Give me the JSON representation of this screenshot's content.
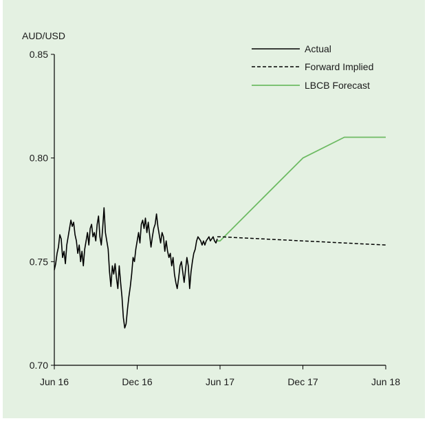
{
  "chart_data": {
    "type": "line",
    "ylabel": "AUD/USD",
    "title": "",
    "xlabel": "",
    "ylim": [
      0.7,
      0.85
    ],
    "yticks": [
      "0.85",
      "0.80",
      "0.75",
      "0.70"
    ],
    "ytick_values": [
      0.85,
      0.8,
      0.75,
      0.7
    ],
    "x_range": [
      "2016-06",
      "2018-06"
    ],
    "xticks": [
      {
        "label": "Jun 16",
        "month": 0
      },
      {
        "label": "Dec 16",
        "month": 6
      },
      {
        "label": "Jun 17",
        "month": 12
      },
      {
        "label": "Dec 17",
        "month": 18
      },
      {
        "label": "Jun 18",
        "month": 24
      }
    ],
    "legend_position": "top-right",
    "colors": {
      "actual": "#000000",
      "forward": "#000000",
      "forecast": "#6dbb63",
      "background": "#e4f1e2"
    },
    "series": [
      {
        "name": "Actual",
        "style": "solid",
        "x": [
          0.0,
          0.1,
          0.2,
          0.3,
          0.4,
          0.5,
          0.6,
          0.7,
          0.8,
          0.9,
          1.0,
          1.1,
          1.2,
          1.3,
          1.4,
          1.5,
          1.6,
          1.7,
          1.8,
          1.9,
          2.0,
          2.1,
          2.2,
          2.3,
          2.4,
          2.5,
          2.6,
          2.7,
          2.8,
          2.9,
          3.0,
          3.1,
          3.2,
          3.3,
          3.4,
          3.5,
          3.6,
          3.7,
          3.8,
          3.9,
          4.0,
          4.1,
          4.2,
          4.3,
          4.4,
          4.5,
          4.6,
          4.7,
          4.8,
          4.9,
          5.0,
          5.1,
          5.2,
          5.3,
          5.4,
          5.5,
          5.6,
          5.7,
          5.8,
          5.9,
          6.0,
          6.1,
          6.2,
          6.3,
          6.4,
          6.5,
          6.6,
          6.7,
          6.8,
          6.9,
          7.0,
          7.1,
          7.2,
          7.3,
          7.4,
          7.5,
          7.6,
          7.7,
          7.8,
          7.9,
          8.0,
          8.1,
          8.2,
          8.3,
          8.4,
          8.5,
          8.6,
          8.7,
          8.8,
          8.9,
          9.0,
          9.1,
          9.2,
          9.3,
          9.4,
          9.5,
          9.6,
          9.7,
          9.8,
          9.9,
          10.0,
          10.1,
          10.2,
          10.3,
          10.4,
          10.5,
          10.6,
          10.7,
          10.8,
          10.9,
          11.0,
          11.1,
          11.2,
          11.3,
          11.4,
          11.5,
          11.6,
          11.7,
          11.8
        ],
        "values": [
          0.746,
          0.749,
          0.754,
          0.757,
          0.763,
          0.761,
          0.752,
          0.755,
          0.749,
          0.758,
          0.762,
          0.766,
          0.77,
          0.767,
          0.769,
          0.763,
          0.76,
          0.754,
          0.758,
          0.75,
          0.755,
          0.748,
          0.756,
          0.76,
          0.764,
          0.758,
          0.766,
          0.768,
          0.762,
          0.764,
          0.76,
          0.768,
          0.772,
          0.762,
          0.758,
          0.766,
          0.776,
          0.764,
          0.76,
          0.756,
          0.745,
          0.738,
          0.748,
          0.744,
          0.749,
          0.742,
          0.737,
          0.748,
          0.74,
          0.733,
          0.723,
          0.718,
          0.72,
          0.727,
          0.733,
          0.738,
          0.744,
          0.752,
          0.75,
          0.756,
          0.76,
          0.764,
          0.759,
          0.768,
          0.77,
          0.766,
          0.771,
          0.764,
          0.769,
          0.763,
          0.757,
          0.762,
          0.766,
          0.768,
          0.773,
          0.767,
          0.763,
          0.759,
          0.764,
          0.762,
          0.755,
          0.76,
          0.755,
          0.752,
          0.754,
          0.748,
          0.752,
          0.744,
          0.74,
          0.737,
          0.742,
          0.748,
          0.75,
          0.745,
          0.74,
          0.746,
          0.752,
          0.748,
          0.737,
          0.745,
          0.75,
          0.754,
          0.756,
          0.76,
          0.762,
          0.761,
          0.76,
          0.758,
          0.76,
          0.758,
          0.76,
          0.761,
          0.762,
          0.76,
          0.761,
          0.762,
          0.76,
          0.759,
          0.761
        ]
      },
      {
        "name": "Forward Implied",
        "style": "dashed",
        "x": [
          11.8,
          12,
          15,
          18,
          21,
          24
        ],
        "values": [
          0.762,
          0.762,
          0.761,
          0.76,
          0.759,
          0.758
        ]
      },
      {
        "name": "LBCB Forecast",
        "style": "solid",
        "x": [
          11.8,
          12,
          15,
          18,
          21,
          24
        ],
        "values": [
          0.76,
          0.76,
          0.78,
          0.8,
          0.81,
          0.81
        ]
      }
    ]
  }
}
